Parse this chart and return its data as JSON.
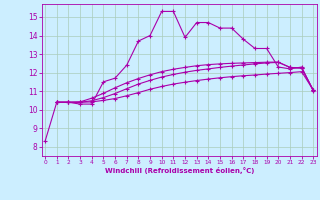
{
  "xlabel": "Windchill (Refroidissement éolien,°C)",
  "bg_color": "#cceeff",
  "grid_color": "#aaccbb",
  "line_color": "#aa00aa",
  "x_ticks": [
    0,
    1,
    2,
    3,
    4,
    5,
    6,
    7,
    8,
    9,
    10,
    11,
    12,
    13,
    14,
    15,
    16,
    17,
    18,
    19,
    20,
    21,
    22,
    23
  ],
  "y_ticks": [
    8,
    9,
    10,
    11,
    12,
    13,
    14,
    15
  ],
  "xlim": [
    -0.3,
    23.3
  ],
  "ylim": [
    7.5,
    15.7
  ],
  "series": [
    {
      "x": [
        0,
        1,
        2,
        3,
        4,
        5,
        6,
        7,
        8,
        9,
        10,
        11,
        12,
        13,
        14,
        15,
        16,
        17,
        18,
        19,
        20,
        21,
        22,
        23
      ],
      "y": [
        8.3,
        10.4,
        10.4,
        10.3,
        10.3,
        11.5,
        11.7,
        12.4,
        13.7,
        14.0,
        15.3,
        15.3,
        13.9,
        14.7,
        14.7,
        14.4,
        14.4,
        13.8,
        13.3,
        13.3,
        12.3,
        12.2,
        12.3,
        11.0
      ],
      "marker": "+",
      "linewidth": 0.8,
      "markersize": 3.5
    },
    {
      "x": [
        1,
        2,
        3,
        4,
        5,
        6,
        7,
        8,
        9,
        10,
        11,
        12,
        13,
        14,
        15,
        16,
        17,
        18,
        19,
        20,
        21,
        22,
        23
      ],
      "y": [
        10.4,
        10.4,
        10.4,
        10.42,
        10.5,
        10.6,
        10.75,
        10.92,
        11.1,
        11.25,
        11.38,
        11.48,
        11.57,
        11.65,
        11.72,
        11.78,
        11.83,
        11.87,
        11.92,
        11.96,
        12.0,
        12.05,
        11.05
      ],
      "marker": "+",
      "linewidth": 0.8,
      "markersize": 3.5
    },
    {
      "x": [
        1,
        2,
        3,
        4,
        5,
        6,
        7,
        8,
        9,
        10,
        11,
        12,
        13,
        14,
        15,
        16,
        17,
        18,
        19,
        20,
        21,
        22,
        23
      ],
      "y": [
        10.4,
        10.4,
        10.4,
        10.48,
        10.65,
        10.87,
        11.13,
        11.38,
        11.58,
        11.76,
        11.9,
        12.02,
        12.12,
        12.2,
        12.28,
        12.35,
        12.41,
        12.47,
        12.52,
        12.55,
        12.28,
        12.24,
        11.05
      ],
      "marker": "+",
      "linewidth": 0.8,
      "markersize": 3.5
    },
    {
      "x": [
        1,
        2,
        3,
        4,
        5,
        6,
        7,
        8,
        9,
        10,
        11,
        12,
        13,
        14,
        15,
        16,
        17,
        18,
        19,
        20,
        21,
        22,
        23
      ],
      "y": [
        10.4,
        10.4,
        10.42,
        10.62,
        10.88,
        11.18,
        11.45,
        11.68,
        11.88,
        12.05,
        12.18,
        12.28,
        12.37,
        12.43,
        12.47,
        12.5,
        12.52,
        12.54,
        12.56,
        12.57,
        12.28,
        12.24,
        11.05
      ],
      "marker": "+",
      "linewidth": 0.8,
      "markersize": 3.5
    }
  ]
}
